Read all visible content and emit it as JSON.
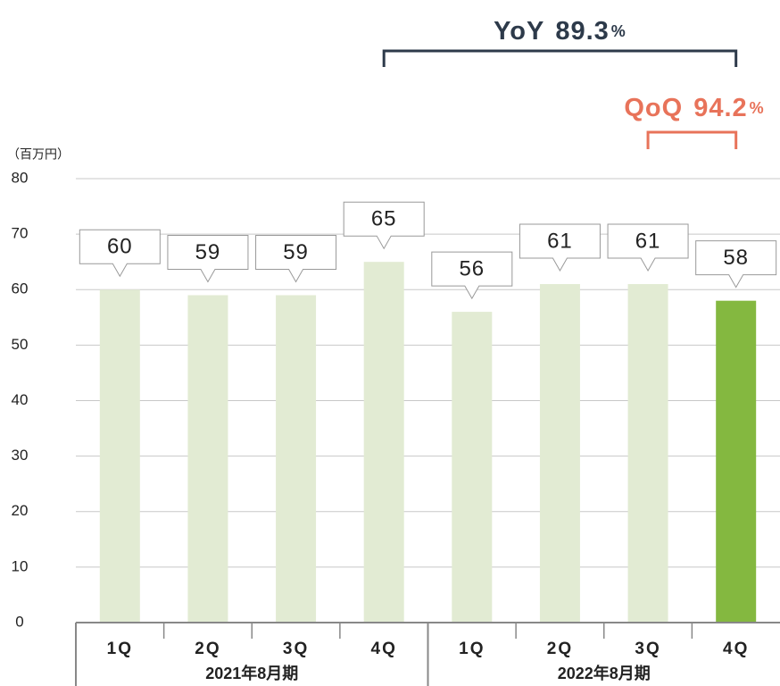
{
  "chart_data": {
    "type": "bar",
    "unit_label": "（百万円）",
    "categories": [
      "1Q",
      "2Q",
      "3Q",
      "4Q",
      "1Q",
      "2Q",
      "3Q",
      "4Q"
    ],
    "groups": [
      "2021年8月期",
      "2022年8月期"
    ],
    "values": [
      60,
      59,
      59,
      65,
      56,
      61,
      61,
      58
    ],
    "colors": [
      "#e2ebd3",
      "#e2ebd3",
      "#e2ebd3",
      "#e2ebd3",
      "#e2ebd3",
      "#e2ebd3",
      "#e2ebd3",
      "#84b840"
    ],
    "ylim": [
      0,
      80
    ],
    "yticks": [
      0,
      10,
      20,
      30,
      40,
      50,
      60,
      70,
      80
    ],
    "grid": true,
    "annotations": [
      {
        "label": "YoY",
        "value": 89.3,
        "unit": "%",
        "color": "#2d3a4a"
      },
      {
        "label": "QoQ",
        "value": 94.2,
        "unit": "%",
        "color": "#e8735a"
      }
    ]
  }
}
